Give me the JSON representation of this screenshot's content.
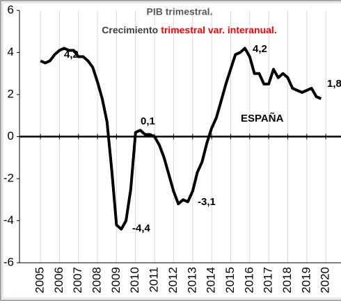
{
  "chart_data": {
    "type": "line",
    "title": "PIB trimestral.",
    "subtitle_parts": [
      "Crecimiento",
      "trimestral var. interanual",
      "."
    ],
    "subtitle_colors": [
      "#404040",
      "#ff0000",
      "#404040"
    ],
    "x": [
      2005,
      2005.25,
      2005.5,
      2005.75,
      2006,
      2006.25,
      2006.5,
      2006.75,
      2007,
      2007.25,
      2007.5,
      2007.75,
      2008,
      2008.25,
      2008.5,
      2008.75,
      2009,
      2009.25,
      2009.5,
      2009.75,
      2010,
      2010.25,
      2010.5,
      2010.75,
      2011,
      2011.25,
      2011.5,
      2011.75,
      2012,
      2012.25,
      2012.5,
      2012.75,
      2013,
      2013.25,
      2013.5,
      2013.75,
      2014,
      2014.25,
      2014.5,
      2014.75,
      2015,
      2015.25,
      2015.5,
      2015.75,
      2016,
      2016.25,
      2016.5,
      2016.75,
      2017,
      2017.25,
      2017.5,
      2017.75,
      2018,
      2018.25,
      2018.5,
      2018.75,
      2019,
      2019.25,
      2019.5,
      2019.75
    ],
    "series": [
      {
        "name": "ESPAÑA",
        "color": "#000000",
        "values": [
          3.6,
          3.5,
          3.6,
          3.9,
          4.1,
          4.2,
          4.1,
          4.1,
          3.8,
          3.8,
          3.6,
          3.3,
          2.6,
          1.8,
          0.7,
          -1.6,
          -4.2,
          -4.4,
          -4.0,
          -2.5,
          0.2,
          0.3,
          0.1,
          0.1,
          0.0,
          -0.4,
          -1.0,
          -1.8,
          -2.6,
          -3.2,
          -3.0,
          -3.1,
          -2.6,
          -1.7,
          -1.2,
          -0.3,
          0.4,
          0.9,
          1.7,
          2.5,
          3.2,
          3.9,
          4.0,
          4.2,
          3.8,
          3.0,
          3.0,
          2.5,
          2.5,
          3.2,
          2.8,
          3.0,
          2.8,
          2.3,
          2.2,
          2.1,
          2.2,
          2.3,
          1.9,
          1.8
        ]
      }
    ],
    "annotations": [
      "4,2",
      "0,1",
      "-4,4",
      "-3,1",
      "4,2",
      "1,8"
    ],
    "xlim": [
      2003.9,
      2020.8
    ],
    "xticks": [
      2005,
      2006,
      2007,
      2008,
      2009,
      2010,
      2011,
      2012,
      2013,
      2014,
      2015,
      2016,
      2017,
      2018,
      2019,
      2020
    ],
    "ylim": [
      -6,
      6
    ],
    "yticks": [
      -6,
      -4,
      -2,
      0,
      2,
      4,
      6
    ],
    "grid": "x"
  }
}
